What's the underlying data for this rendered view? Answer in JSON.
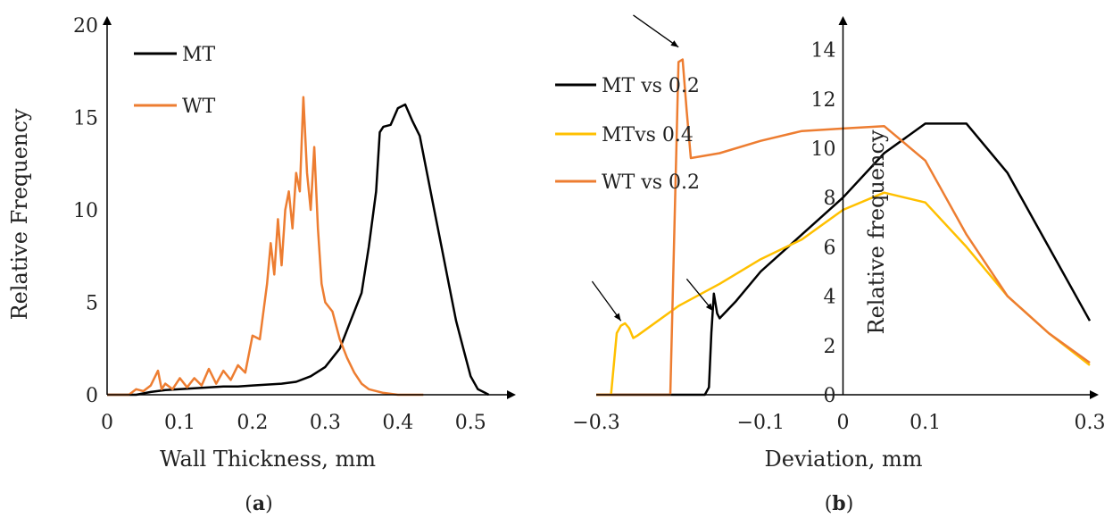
{
  "chart_data": [
    {
      "type": "line",
      "xlabel": "Wall Thickness, mm",
      "ylabel": "Relative Frequency",
      "caption_letter": "a",
      "xlim": [
        0,
        0.55
      ],
      "ylim": [
        0,
        20
      ],
      "x_ticks": [
        {
          "value": 0,
          "label": "0"
        },
        {
          "value": 0.1,
          "label": "0.1"
        },
        {
          "value": 0.2,
          "label": "0.2"
        },
        {
          "value": 0.3,
          "label": "0.3"
        },
        {
          "value": 0.4,
          "label": "0.4"
        },
        {
          "value": 0.5,
          "label": "0.5"
        }
      ],
      "y_ticks": [
        {
          "value": 0,
          "label": "0"
        },
        {
          "value": 5,
          "label": "5"
        },
        {
          "value": 10,
          "label": "10"
        },
        {
          "value": 15,
          "label": "15"
        },
        {
          "value": 20,
          "label": "20"
        }
      ],
      "legend_position": "top-left",
      "series": [
        {
          "name": "MT",
          "color": "#000000",
          "points": [
            [
              0,
              0
            ],
            [
              0.04,
              0
            ],
            [
              0.06,
              0.15
            ],
            [
              0.08,
              0.25
            ],
            [
              0.1,
              0.3
            ],
            [
              0.12,
              0.35
            ],
            [
              0.14,
              0.4
            ],
            [
              0.16,
              0.45
            ],
            [
              0.18,
              0.45
            ],
            [
              0.2,
              0.5
            ],
            [
              0.22,
              0.55
            ],
            [
              0.24,
              0.6
            ],
            [
              0.26,
              0.7
            ],
            [
              0.28,
              1.0
            ],
            [
              0.3,
              1.5
            ],
            [
              0.32,
              2.5
            ],
            [
              0.33,
              3.5
            ],
            [
              0.34,
              4.5
            ],
            [
              0.35,
              5.5
            ],
            [
              0.36,
              8
            ],
            [
              0.37,
              11
            ],
            [
              0.375,
              14.2
            ],
            [
              0.38,
              14.5
            ],
            [
              0.39,
              14.6
            ],
            [
              0.4,
              15.5
            ],
            [
              0.41,
              15.7
            ],
            [
              0.42,
              14.8
            ],
            [
              0.43,
              14
            ],
            [
              0.44,
              12
            ],
            [
              0.45,
              10
            ],
            [
              0.46,
              8
            ],
            [
              0.47,
              6
            ],
            [
              0.48,
              4
            ],
            [
              0.49,
              2.5
            ],
            [
              0.5,
              1
            ],
            [
              0.51,
              0.3
            ],
            [
              0.52,
              0.1
            ],
            [
              0.525,
              0
            ]
          ]
        },
        {
          "name": "WT",
          "color": "#ED7D31",
          "points": [
            [
              0,
              0
            ],
            [
              0.03,
              0
            ],
            [
              0.04,
              0.3
            ],
            [
              0.05,
              0.2
            ],
            [
              0.06,
              0.5
            ],
            [
              0.07,
              1.3
            ],
            [
              0.075,
              0.3
            ],
            [
              0.08,
              0.6
            ],
            [
              0.09,
              0.3
            ],
            [
              0.1,
              0.9
            ],
            [
              0.11,
              0.4
            ],
            [
              0.12,
              0.9
            ],
            [
              0.13,
              0.5
            ],
            [
              0.14,
              1.4
            ],
            [
              0.15,
              0.6
            ],
            [
              0.16,
              1.3
            ],
            [
              0.17,
              0.8
            ],
            [
              0.18,
              1.6
            ],
            [
              0.19,
              1.2
            ],
            [
              0.2,
              3.2
            ],
            [
              0.21,
              3.0
            ],
            [
              0.22,
              6.0
            ],
            [
              0.225,
              8.2
            ],
            [
              0.23,
              6.5
            ],
            [
              0.235,
              9.5
            ],
            [
              0.24,
              7.0
            ],
            [
              0.245,
              10
            ],
            [
              0.25,
              11
            ],
            [
              0.255,
              9.0
            ],
            [
              0.26,
              12
            ],
            [
              0.265,
              11
            ],
            [
              0.27,
              16.1
            ],
            [
              0.275,
              12
            ],
            [
              0.28,
              10
            ],
            [
              0.285,
              13.4
            ],
            [
              0.29,
              9
            ],
            [
              0.295,
              6
            ],
            [
              0.3,
              5
            ],
            [
              0.31,
              4.5
            ],
            [
              0.32,
              3
            ],
            [
              0.33,
              2
            ],
            [
              0.34,
              1.2
            ],
            [
              0.35,
              0.6
            ],
            [
              0.36,
              0.3
            ],
            [
              0.38,
              0.1
            ],
            [
              0.4,
              0
            ],
            [
              0.435,
              0
            ]
          ]
        }
      ]
    },
    {
      "type": "line",
      "xlabel": "Deviation, mm",
      "ylabel": "Relative frequency",
      "caption_letter": "b",
      "xlim": [
        -0.3,
        0.3
      ],
      "ylim": [
        0,
        15
      ],
      "x_ticks": [
        {
          "value": -0.3,
          "label": "−0.3"
        },
        {
          "value": -0.1,
          "label": "−0.1"
        },
        {
          "value": 0,
          "label": "0"
        },
        {
          "value": 0.1,
          "label": "0.1"
        },
        {
          "value": 0.3,
          "label": "0.3"
        }
      ],
      "y_ticks": [
        {
          "value": 0,
          "label": "0"
        },
        {
          "value": 2,
          "label": "2"
        },
        {
          "value": 4,
          "label": "4"
        },
        {
          "value": 6,
          "label": "6"
        },
        {
          "value": 8,
          "label": "8"
        },
        {
          "value": 10,
          "label": "10"
        },
        {
          "value": 12,
          "label": "12"
        },
        {
          "value": 14,
          "label": "14"
        }
      ],
      "legend_position": "left",
      "series": [
        {
          "name": "MT vs 0.2",
          "color": "#000000",
          "points": [
            [
              -0.3,
              0
            ],
            [
              -0.168,
              0
            ],
            [
              -0.163,
              0.3
            ],
            [
              -0.16,
              2.5
            ],
            [
              -0.157,
              4.1
            ],
            [
              -0.153,
              3.3
            ],
            [
              -0.15,
              3.1
            ],
            [
              -0.13,
              3.8
            ],
            [
              -0.1,
              5.0
            ],
            [
              -0.05,
              6.5
            ],
            [
              0,
              8.0
            ],
            [
              0.05,
              9.8
            ],
            [
              0.1,
              11.0
            ],
            [
              0.15,
              11.0
            ],
            [
              0.2,
              9.0
            ],
            [
              0.25,
              6.0
            ],
            [
              0.3,
              3.0
            ]
          ]
        },
        {
          "name": "MTvs 0.4",
          "color": "#FFC000",
          "points": [
            [
              -0.3,
              0
            ],
            [
              -0.282,
              0
            ],
            [
              -0.275,
              2.5
            ],
            [
              -0.27,
              2.8
            ],
            [
              -0.265,
              2.9
            ],
            [
              -0.26,
              2.7
            ],
            [
              -0.255,
              2.3
            ],
            [
              -0.25,
              2.4
            ],
            [
              -0.2,
              3.6
            ],
            [
              -0.15,
              4.5
            ],
            [
              -0.1,
              5.5
            ],
            [
              -0.05,
              6.3
            ],
            [
              0,
              7.5
            ],
            [
              0.05,
              8.2
            ],
            [
              0.1,
              7.8
            ],
            [
              0.15,
              6.0
            ],
            [
              0.2,
              4.0
            ],
            [
              0.25,
              2.5
            ],
            [
              0.3,
              1.2
            ]
          ]
        },
        {
          "name": "WT vs 0.2",
          "color": "#ED7D31",
          "points": [
            [
              -0.3,
              0
            ],
            [
              -0.21,
              0
            ],
            [
              -0.2,
              13.5
            ],
            [
              -0.195,
              13.6
            ],
            [
              -0.19,
              11.5
            ],
            [
              -0.185,
              9.6
            ],
            [
              -0.15,
              9.8
            ],
            [
              -0.1,
              10.3
            ],
            [
              -0.05,
              10.7
            ],
            [
              0,
              10.8
            ],
            [
              0.05,
              10.9
            ],
            [
              0.1,
              9.5
            ],
            [
              0.15,
              6.5
            ],
            [
              0.2,
              4.0
            ],
            [
              0.25,
              2.5
            ],
            [
              0.3,
              1.3
            ]
          ]
        }
      ]
    }
  ]
}
